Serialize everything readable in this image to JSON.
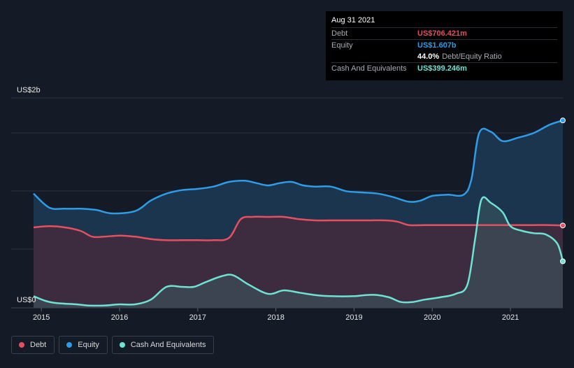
{
  "tooltip": {
    "date": "Aug 31 2021",
    "debt_label": "Debt",
    "debt_value": "US$706.421m",
    "equity_label": "Equity",
    "equity_value": "US$1.607b",
    "ratio_value": "44.0%",
    "ratio_label": "Debt/Equity Ratio",
    "cash_label": "Cash And Equivalents",
    "cash_value": "US$399.246m"
  },
  "colors": {
    "debt": "#e4505e",
    "equity": "#2e9ce6",
    "cash": "#6fe3d3",
    "background": "#151b26"
  },
  "legend": [
    {
      "label": "Debt",
      "color": "#e4505e"
    },
    {
      "label": "Equity",
      "color": "#2e9ce6"
    },
    {
      "label": "Cash And Equivalents",
      "color": "#6fe3d3"
    }
  ],
  "chart_data": {
    "type": "area",
    "y_axis_labels": [
      "US$2b",
      "US$0"
    ],
    "ylim": [
      0,
      1.8
    ],
    "xlim": [
      2014.9,
      2021.67
    ],
    "x_ticks": [
      "2015",
      "2016",
      "2017",
      "2018",
      "2019",
      "2020",
      "2021"
    ],
    "grid": true,
    "series": [
      {
        "name": "Equity",
        "x": [
          2014.9,
          2015.1,
          2015.3,
          2015.5,
          2015.7,
          2015.9,
          2016.2,
          2016.4,
          2016.6,
          2016.8,
          2017.0,
          2017.2,
          2017.4,
          2017.6,
          2017.75,
          2017.9,
          2018.05,
          2018.2,
          2018.35,
          2018.5,
          2018.7,
          2018.9,
          2019.1,
          2019.3,
          2019.5,
          2019.7,
          2019.85,
          2020.0,
          2020.2,
          2020.4,
          2020.5,
          2020.6,
          2020.75,
          2020.9,
          2021.1,
          2021.3,
          2021.5,
          2021.67
        ],
        "values": [
          0.98,
          0.86,
          0.85,
          0.85,
          0.84,
          0.81,
          0.83,
          0.92,
          0.98,
          1.01,
          1.02,
          1.04,
          1.08,
          1.09,
          1.07,
          1.05,
          1.07,
          1.08,
          1.05,
          1.04,
          1.04,
          1.0,
          0.99,
          0.98,
          0.95,
          0.91,
          0.92,
          0.96,
          0.97,
          0.97,
          1.1,
          1.5,
          1.51,
          1.43,
          1.46,
          1.5,
          1.57,
          1.607
        ]
      },
      {
        "name": "Debt",
        "x": [
          2014.9,
          2015.1,
          2015.3,
          2015.5,
          2015.65,
          2015.8,
          2016.0,
          2016.2,
          2016.4,
          2016.6,
          2016.8,
          2017.0,
          2017.2,
          2017.4,
          2017.55,
          2017.7,
          2017.9,
          2018.1,
          2018.3,
          2018.5,
          2018.7,
          2019.0,
          2019.2,
          2019.4,
          2019.55,
          2019.7,
          2019.9,
          2020.1,
          2020.3,
          2020.5,
          2020.7,
          2020.9,
          2021.1,
          2021.3,
          2021.5,
          2021.67
        ],
        "values": [
          0.69,
          0.7,
          0.69,
          0.66,
          0.61,
          0.61,
          0.62,
          0.61,
          0.59,
          0.58,
          0.58,
          0.58,
          0.58,
          0.6,
          0.76,
          0.78,
          0.78,
          0.78,
          0.76,
          0.75,
          0.75,
          0.75,
          0.75,
          0.75,
          0.74,
          0.71,
          0.71,
          0.71,
          0.71,
          0.71,
          0.71,
          0.71,
          0.71,
          0.71,
          0.71,
          0.706
        ]
      },
      {
        "name": "Cash And Equivalents",
        "x": [
          2014.9,
          2015.05,
          2015.2,
          2015.45,
          2015.6,
          2015.8,
          2016.0,
          2016.2,
          2016.4,
          2016.6,
          2016.8,
          2016.95,
          2017.1,
          2017.3,
          2017.45,
          2017.65,
          2017.9,
          2018.1,
          2018.3,
          2018.5,
          2018.7,
          2019.0,
          2019.15,
          2019.3,
          2019.45,
          2019.6,
          2019.75,
          2019.9,
          2020.1,
          2020.3,
          2020.45,
          2020.55,
          2020.63,
          2020.75,
          2020.9,
          2021.0,
          2021.15,
          2021.3,
          2021.45,
          2021.6,
          2021.67
        ],
        "values": [
          0.1,
          0.06,
          0.04,
          0.03,
          0.02,
          0.02,
          0.03,
          0.03,
          0.07,
          0.18,
          0.18,
          0.18,
          0.22,
          0.27,
          0.28,
          0.2,
          0.12,
          0.15,
          0.13,
          0.11,
          0.1,
          0.1,
          0.11,
          0.11,
          0.09,
          0.05,
          0.05,
          0.07,
          0.09,
          0.12,
          0.2,
          0.6,
          0.93,
          0.9,
          0.82,
          0.7,
          0.66,
          0.64,
          0.63,
          0.55,
          0.399
        ]
      }
    ]
  }
}
